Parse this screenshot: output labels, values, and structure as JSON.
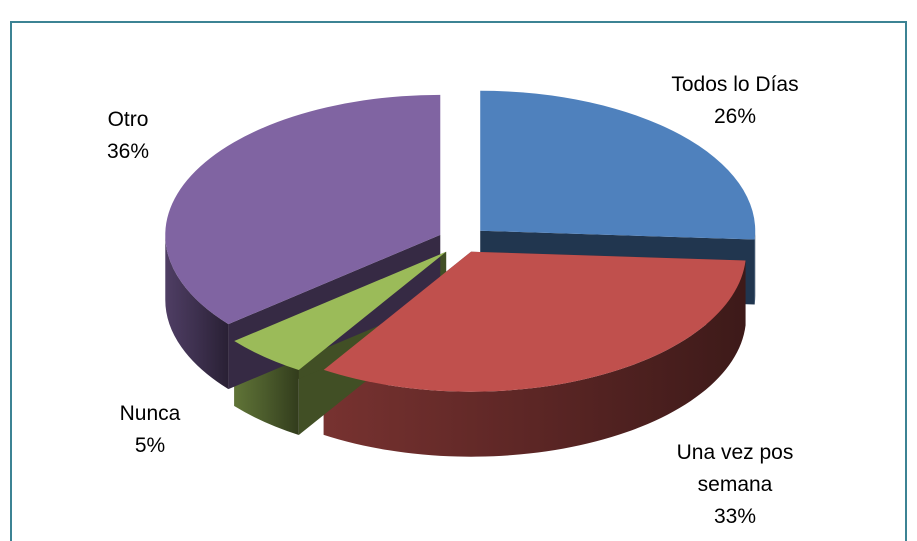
{
  "chart_data": {
    "type": "pie",
    "three_d": true,
    "exploded": true,
    "legend": "none",
    "title": "",
    "slices": [
      {
        "label_lines": [
          "Todos lo Días"
        ],
        "percent_label": "26%",
        "value": 26,
        "color": "#4f81bd"
      },
      {
        "label_lines": [
          "Una vez pos",
          "semana"
        ],
        "percent_label": "33%",
        "value": 33,
        "color": "#c0504d"
      },
      {
        "label_lines": [
          "Nunca"
        ],
        "percent_label": "5%",
        "value": 5,
        "color": "#9bbb59"
      },
      {
        "label_lines": [
          "Otro"
        ],
        "percent_label": "36%",
        "value": 36,
        "color": "#8064a2"
      }
    ]
  }
}
